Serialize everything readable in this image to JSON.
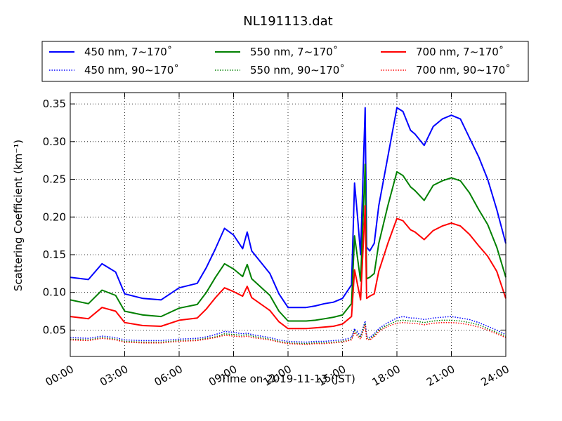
{
  "chart_data": {
    "type": "line",
    "title": "NL191113.dat",
    "xlabel": "Time on 2019-11-13 (JST)",
    "ylabel": "Scattering Coefficient (km⁻¹)",
    "xlim": [
      "00:00",
      "24:00"
    ],
    "ylim": [
      0.015,
      0.365
    ],
    "x_ticks": [
      "00:00",
      "03:00",
      "06:00",
      "09:00",
      "12:00",
      "15:00",
      "18:00",
      "21:00",
      "24:00"
    ],
    "y_ticks": [
      "0.05",
      "0.10",
      "0.15",
      "0.20",
      "0.25",
      "0.30",
      "0.35"
    ],
    "grid": true,
    "legend": "top (above plot), 3 columns",
    "x": [
      "00:00",
      "01:00",
      "01:45",
      "02:30",
      "03:00",
      "04:00",
      "05:00",
      "06:00",
      "07:00",
      "07:30",
      "08:00",
      "08:30",
      "09:00",
      "09:30",
      "09:45",
      "10:00",
      "11:00",
      "11:30",
      "12:00",
      "13:00",
      "13:30",
      "14:00",
      "14:30",
      "15:00",
      "15:30",
      "15:40",
      "15:50",
      "16:00",
      "16:15",
      "16:20",
      "16:30",
      "16:45",
      "17:00",
      "17:30",
      "18:00",
      "18:20",
      "18:45",
      "19:00",
      "19:30",
      "20:00",
      "20:30",
      "21:00",
      "21:30",
      "22:00",
      "22:30",
      "23:00",
      "23:30",
      "24:00"
    ],
    "series": [
      {
        "name": "450 nm, 7∼170˚",
        "color": "#0000ff",
        "style": "solid",
        "values": [
          0.12,
          0.117,
          0.138,
          0.127,
          0.098,
          0.092,
          0.09,
          0.106,
          0.112,
          0.133,
          0.158,
          0.185,
          0.176,
          0.158,
          0.18,
          0.155,
          0.125,
          0.098,
          0.08,
          0.08,
          0.082,
          0.085,
          0.087,
          0.092,
          0.11,
          0.245,
          0.2,
          0.15,
          0.345,
          0.16,
          0.155,
          0.165,
          0.215,
          0.28,
          0.345,
          0.34,
          0.315,
          0.31,
          0.295,
          0.32,
          0.33,
          0.335,
          0.33,
          0.305,
          0.28,
          0.25,
          0.21,
          0.165
        ]
      },
      {
        "name": "550 nm, 7∼170˚",
        "color": "#008000",
        "style": "solid",
        "values": [
          0.09,
          0.085,
          0.103,
          0.096,
          0.075,
          0.07,
          0.068,
          0.079,
          0.084,
          0.1,
          0.12,
          0.138,
          0.131,
          0.121,
          0.137,
          0.118,
          0.096,
          0.075,
          0.062,
          0.062,
          0.063,
          0.065,
          0.067,
          0.07,
          0.085,
          0.175,
          0.145,
          0.115,
          0.27,
          0.118,
          0.12,
          0.125,
          0.165,
          0.215,
          0.26,
          0.255,
          0.24,
          0.235,
          0.222,
          0.242,
          0.248,
          0.252,
          0.248,
          0.232,
          0.21,
          0.19,
          0.16,
          0.12
        ]
      },
      {
        "name": "700 nm, 7∼170˚",
        "color": "#ff0000",
        "style": "solid",
        "values": [
          0.068,
          0.065,
          0.08,
          0.075,
          0.06,
          0.056,
          0.055,
          0.063,
          0.066,
          0.078,
          0.093,
          0.106,
          0.101,
          0.095,
          0.108,
          0.093,
          0.076,
          0.061,
          0.052,
          0.052,
          0.053,
          0.054,
          0.055,
          0.058,
          0.068,
          0.13,
          0.11,
          0.09,
          0.215,
          0.092,
          0.095,
          0.098,
          0.128,
          0.165,
          0.198,
          0.195,
          0.183,
          0.18,
          0.17,
          0.182,
          0.188,
          0.192,
          0.188,
          0.177,
          0.162,
          0.148,
          0.128,
          0.092
        ]
      },
      {
        "name": "450 nm, 90∼170˚",
        "color": "#0000ff",
        "style": "dotted",
        "values": [
          0.04,
          0.039,
          0.042,
          0.04,
          0.037,
          0.036,
          0.036,
          0.038,
          0.039,
          0.041,
          0.044,
          0.048,
          0.047,
          0.045,
          0.046,
          0.044,
          0.04,
          0.037,
          0.035,
          0.034,
          0.035,
          0.035,
          0.036,
          0.037,
          0.04,
          0.052,
          0.047,
          0.042,
          0.062,
          0.042,
          0.04,
          0.045,
          0.052,
          0.06,
          0.066,
          0.068,
          0.066,
          0.066,
          0.064,
          0.066,
          0.067,
          0.068,
          0.066,
          0.064,
          0.06,
          0.055,
          0.05,
          0.044
        ]
      },
      {
        "name": "550 nm, 90∼170˚",
        "color": "#008000",
        "style": "dotted",
        "values": [
          0.038,
          0.037,
          0.04,
          0.038,
          0.035,
          0.034,
          0.034,
          0.036,
          0.037,
          0.039,
          0.041,
          0.045,
          0.044,
          0.043,
          0.044,
          0.042,
          0.038,
          0.035,
          0.033,
          0.032,
          0.033,
          0.033,
          0.034,
          0.035,
          0.038,
          0.049,
          0.044,
          0.04,
          0.059,
          0.04,
          0.038,
          0.043,
          0.05,
          0.057,
          0.062,
          0.063,
          0.062,
          0.062,
          0.06,
          0.062,
          0.063,
          0.063,
          0.062,
          0.06,
          0.057,
          0.052,
          0.047,
          0.042
        ]
      },
      {
        "name": "700 nm, 90∼170˚",
        "color": "#ff0000",
        "style": "dotted",
        "values": [
          0.037,
          0.036,
          0.039,
          0.037,
          0.034,
          0.033,
          0.033,
          0.035,
          0.036,
          0.038,
          0.04,
          0.043,
          0.042,
          0.041,
          0.042,
          0.04,
          0.037,
          0.034,
          0.032,
          0.031,
          0.032,
          0.032,
          0.033,
          0.034,
          0.037,
          0.047,
          0.042,
          0.038,
          0.057,
          0.038,
          0.037,
          0.041,
          0.048,
          0.055,
          0.059,
          0.06,
          0.059,
          0.059,
          0.057,
          0.059,
          0.06,
          0.06,
          0.059,
          0.057,
          0.054,
          0.05,
          0.045,
          0.04
        ]
      }
    ]
  }
}
